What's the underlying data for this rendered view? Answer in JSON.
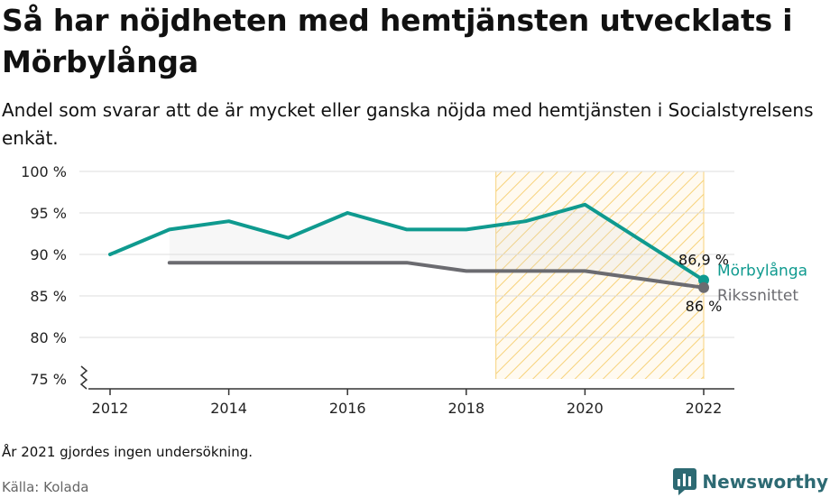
{
  "title": "Så har nöjdheten med hemtjänsten utvecklats i Mörbylånga",
  "subtitle": "Andel som svarar att de är mycket eller ganska nöjda med hemtjänsten i Socialstyrelsens enkät.",
  "note": "År 2021 gjordes ingen undersökning.",
  "source": "Källa: Kolada",
  "brand": {
    "name": "Newsworthy",
    "icon": "newsworthy-logo-icon"
  },
  "chart_data": {
    "type": "line",
    "y_tick_labels": [
      "100 %",
      "95 %",
      "90 %",
      "85 %",
      "80 %",
      "75 %"
    ],
    "y_ticks": [
      100,
      95,
      90,
      85,
      80,
      75
    ],
    "x_tick_labels": [
      "2012",
      "2014",
      "2016",
      "2018",
      "2020",
      "2022"
    ],
    "x_ticks": [
      2012,
      2014,
      2016,
      2018,
      2020,
      2022
    ],
    "xlim": [
      2011.5,
      2022.5
    ],
    "ylim": [
      75,
      100
    ],
    "axis_break": true,
    "highlight_range": [
      2018.5,
      2022
    ],
    "series": [
      {
        "name": "Mörbylånga",
        "color": "#0f9a8f",
        "x": [
          2012,
          2013,
          2014,
          2015,
          2016,
          2017,
          2018,
          2019,
          2020,
          2022
        ],
        "values": [
          90,
          93,
          94,
          92,
          95,
          93,
          93,
          94,
          96,
          86.9
        ],
        "end_label": "86,9 %"
      },
      {
        "name": "Rikssnittet",
        "color": "#6b6b70",
        "x": [
          2013,
          2014,
          2015,
          2016,
          2017,
          2018,
          2019,
          2020,
          2022
        ],
        "values": [
          89,
          89,
          89,
          89,
          89,
          88,
          88,
          88,
          86
        ],
        "end_label": "86 %"
      }
    ]
  }
}
